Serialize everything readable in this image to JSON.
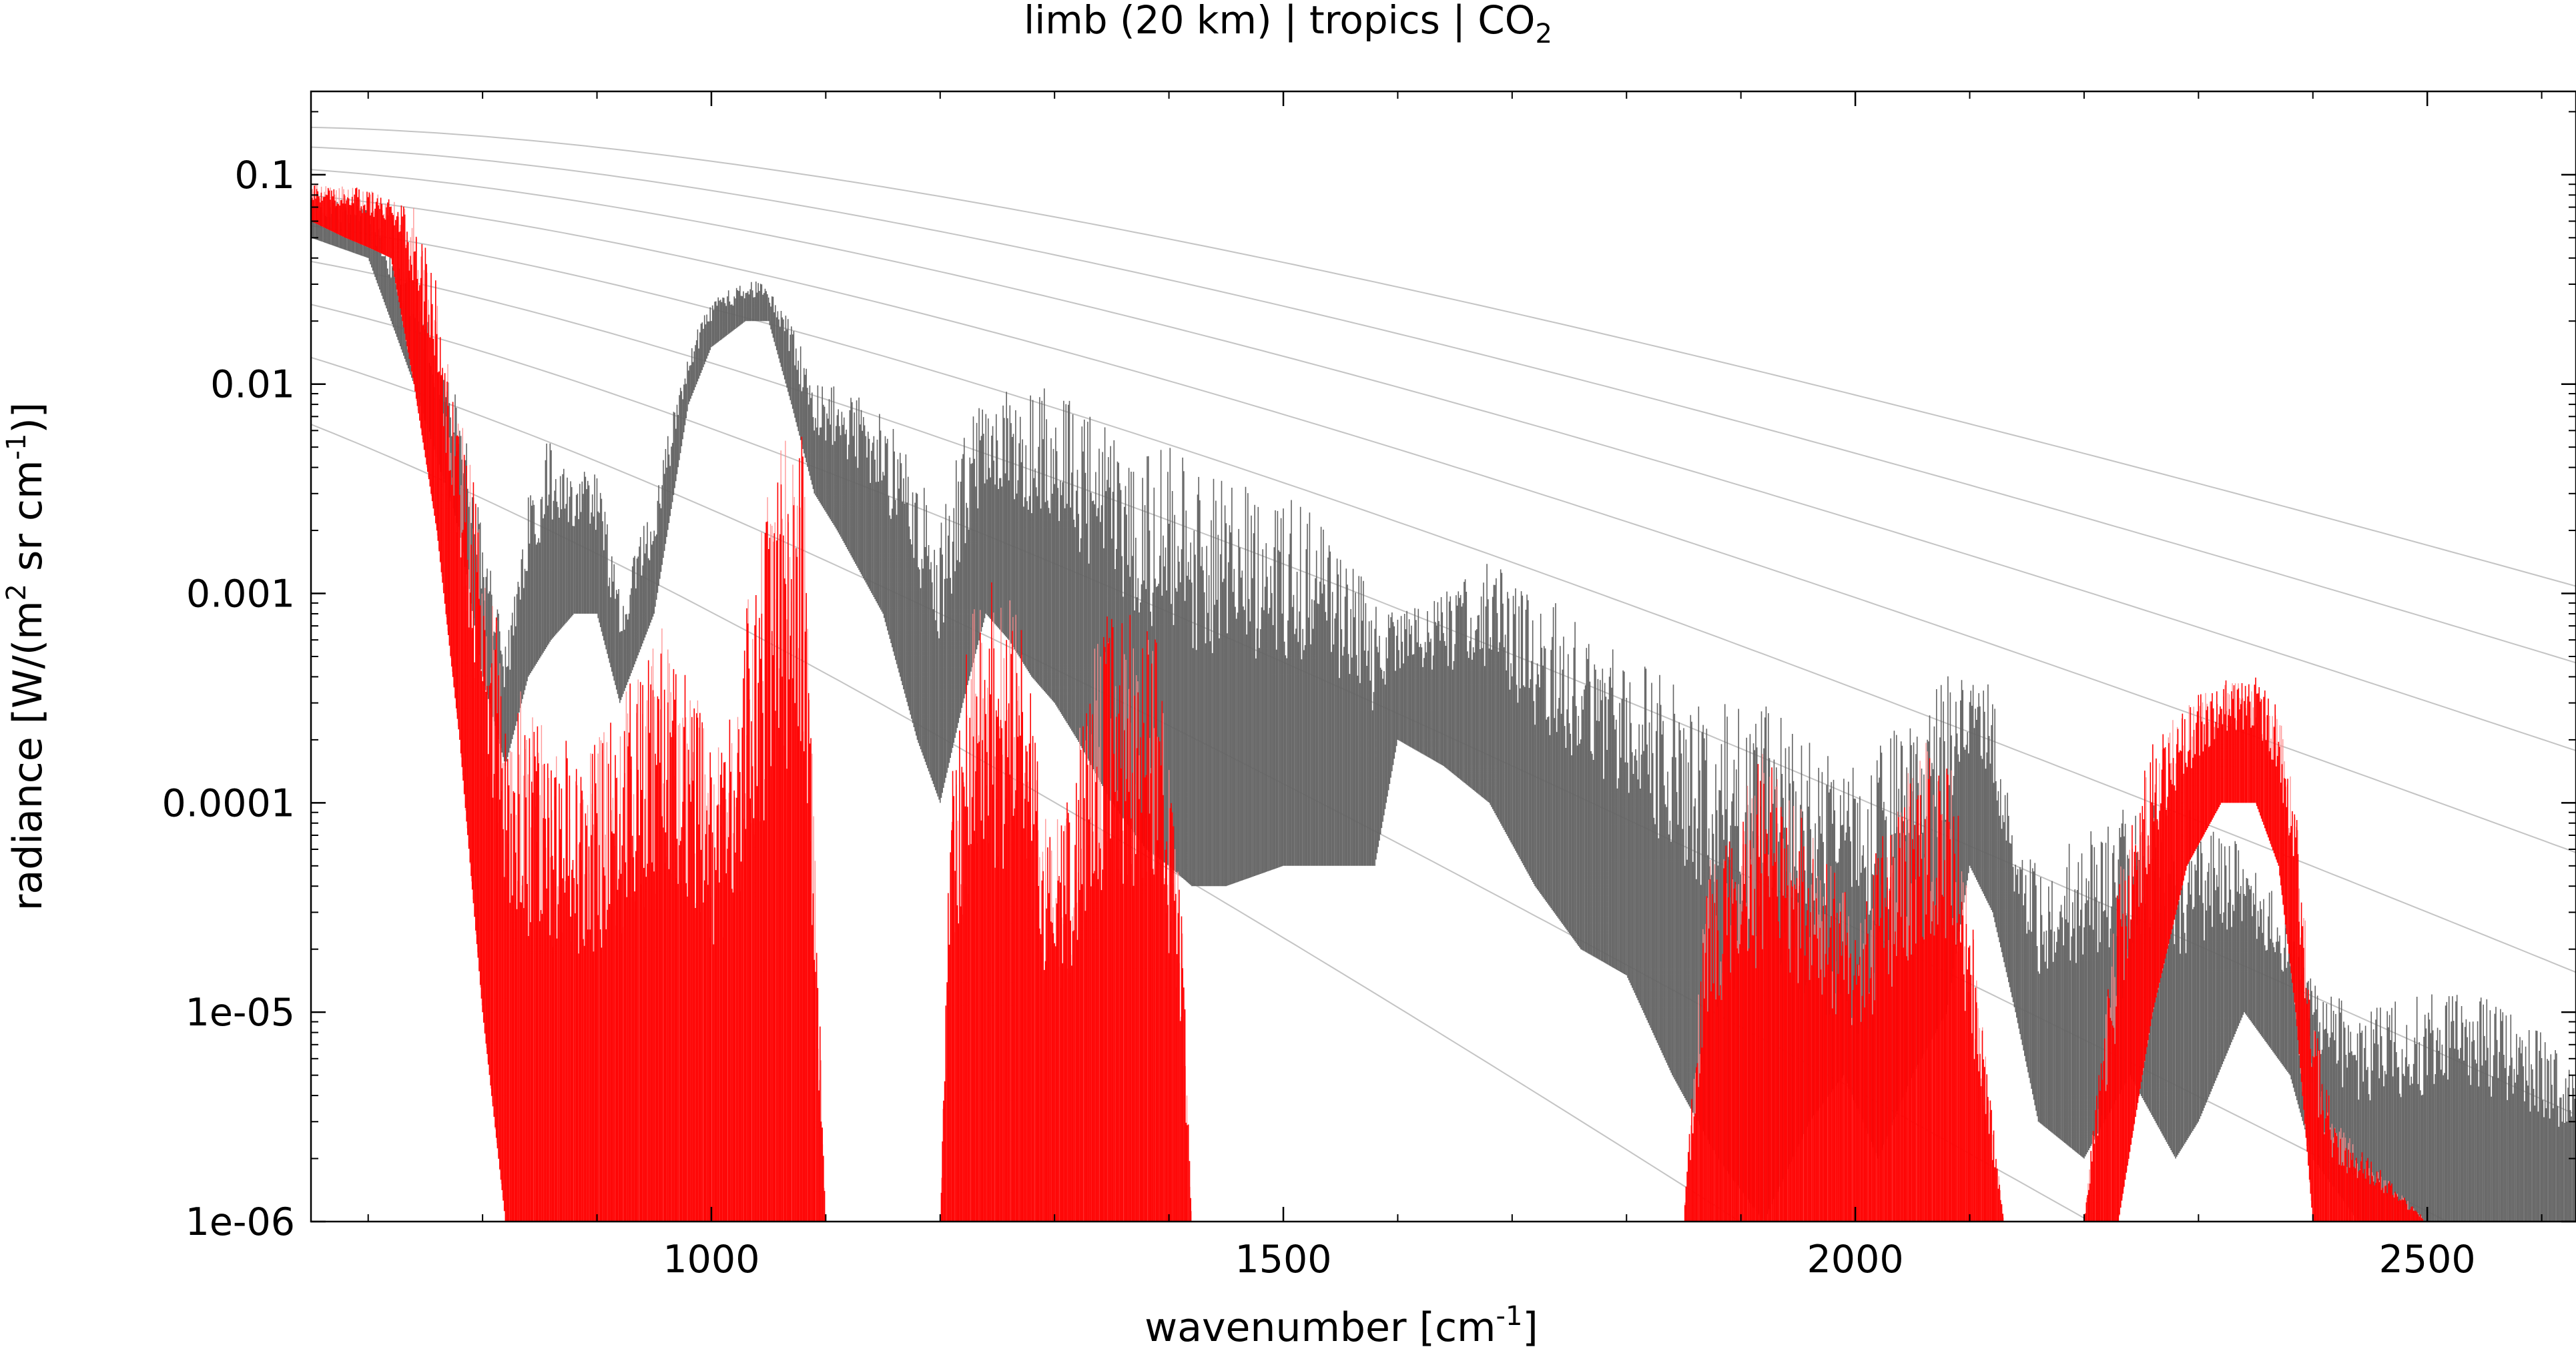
{
  "chart_data": {
    "type": "line",
    "title": {
      "prefix": "limb (20 km) | tropics | CO",
      "subscript": "2"
    },
    "xlabel": {
      "prefix": "wavenumber [cm",
      "superscript": "-1",
      "suffix": "]"
    },
    "ylabel": {
      "part1": "radiance [W/(m",
      "sup1": "2",
      "part2": " sr cm",
      "sup2": "-1",
      "part3": ")]"
    },
    "xlim": [
      650,
      2630
    ],
    "ylim": [
      1e-06,
      0.25
    ],
    "yscale": "log",
    "grid": false,
    "x_ticks": [
      1000,
      1500,
      2000,
      2500
    ],
    "x_tick_labels": [
      "1000",
      "1500",
      "2000",
      "2500"
    ],
    "y_ticks": [
      0.1,
      0.01,
      0.001,
      0.0001,
      1e-05,
      1e-06
    ],
    "y_tick_labels": [
      "0.1",
      "0.01",
      "0.001",
      "0.0001",
      "1e-05",
      "1e-06"
    ],
    "colors": {
      "total": "#636363",
      "co2": "#ff0000",
      "co2_light": "#ff8c8c",
      "reference": "#c4c4c4"
    },
    "reference_curves": {
      "note_units": "Planck radiance curves, temperature in K",
      "temperatures_K": [
        310,
        290,
        270,
        250,
        230,
        210,
        190,
        170,
        150
      ]
    },
    "series": [
      {
        "id": "total",
        "color_key": "total",
        "x": [
          650,
          700,
          740,
          780,
          800,
          820,
          840,
          860,
          880,
          900,
          920,
          950,
          980,
          1000,
          1030,
          1050,
          1070,
          1090,
          1110,
          1150,
          1180,
          1200,
          1220,
          1240,
          1260,
          1280,
          1300,
          1320,
          1350,
          1380,
          1400,
          1420,
          1450,
          1500,
          1550,
          1580,
          1600,
          1640,
          1680,
          1720,
          1760,
          1800,
          1840,
          1880,
          1920,
          1960,
          1990,
          2020,
          2050,
          2080,
          2100,
          2120,
          2140,
          2160,
          2200,
          2240,
          2280,
          2300,
          2340,
          2380,
          2400,
          2440,
          2480,
          2520,
          2560,
          2600,
          2630
        ],
        "y_upper": [
          0.08,
          0.07,
          0.03,
          0.008,
          0.002,
          0.0006,
          0.003,
          0.006,
          0.004,
          0.004,
          0.001,
          0.003,
          0.015,
          0.025,
          0.032,
          0.03,
          0.02,
          0.01,
          0.01,
          0.008,
          0.004,
          0.0025,
          0.006,
          0.009,
          0.01,
          0.009,
          0.01,
          0.008,
          0.006,
          0.005,
          0.005,
          0.0045,
          0.004,
          0.003,
          0.002,
          0.001,
          0.0008,
          0.001,
          0.0015,
          0.001,
          0.0008,
          0.0005,
          0.0004,
          0.0003,
          0.0003,
          0.0002,
          0.00015,
          0.0002,
          0.0003,
          0.0004,
          0.00045,
          0.0004,
          8e-05,
          5e-05,
          8e-05,
          0.0001,
          0.0001,
          0.0001,
          6e-05,
          3e-05,
          1.5e-05,
          1e-05,
          1.2e-05,
          1.3e-05,
          1.2e-05,
          8e-06,
          5e-06
        ],
        "y_lower": [
          0.05,
          0.04,
          0.01,
          0.002,
          0.0004,
          0.00015,
          0.0004,
          0.0006,
          0.0008,
          0.0008,
          0.0003,
          0.0008,
          0.008,
          0.015,
          0.02,
          0.02,
          0.008,
          0.003,
          0.002,
          0.0008,
          0.0002,
          0.0001,
          0.0003,
          0.0008,
          0.0006,
          0.0004,
          0.0003,
          0.0002,
          0.0001,
          6e-05,
          5e-05,
          4e-05,
          4e-05,
          5e-05,
          5e-05,
          5e-05,
          0.0002,
          0.00015,
          0.0001,
          4e-05,
          2e-05,
          1.5e-05,
          5e-06,
          2e-06,
          1e-06,
          3e-06,
          5e-06,
          2e-06,
          5e-06,
          1e-05,
          5e-05,
          3e-05,
          1e-05,
          3e-06,
          2e-06,
          5e-06,
          2e-06,
          3e-06,
          1e-05,
          5e-06,
          2e-06,
          1e-06,
          1e-06,
          1e-06,
          1e-06,
          1e-06,
          1e-06
        ]
      },
      {
        "id": "co2",
        "color_key": "co2",
        "x": [
          650,
          680,
          700,
          720,
          740,
          760,
          780,
          800,
          820,
          840,
          860,
          880,
          900,
          920,
          940,
          960,
          980,
          1000,
          1020,
          1040,
          1060,
          1080,
          1100,
          1200,
          1210,
          1230,
          1250,
          1270,
          1290,
          1310,
          1330,
          1350,
          1370,
          1390,
          1410,
          1420,
          1850,
          1870,
          1900,
          1920,
          1950,
          1980,
          2000,
          2030,
          2060,
          2090,
          2110,
          2130,
          2200,
          2230,
          2260,
          2290,
          2320,
          2350,
          2370,
          2385,
          2400,
          2420,
          2450,
          2500,
          2550,
          2630
        ],
        "y_upper": [
          0.09,
          0.09,
          0.085,
          0.08,
          0.07,
          0.03,
          0.008,
          0.002,
          0.0005,
          0.0003,
          0.0002,
          0.0002,
          0.0002,
          0.0003,
          0.0005,
          0.0008,
          0.0005,
          0.0002,
          0.0003,
          0.002,
          0.007,
          0.006,
          1e-06,
          1e-06,
          0.0002,
          0.001,
          0.0012,
          0.0009,
          0.0001,
          0.0001,
          0.0005,
          0.0009,
          0.0008,
          0.0006,
          5e-05,
          1e-06,
          1e-06,
          5e-05,
          0.0001,
          0.0002,
          0.0001,
          5e-05,
          3e-05,
          0.0001,
          0.0002,
          0.00015,
          1e-05,
          1e-06,
          1e-06,
          5e-05,
          0.0002,
          0.0003,
          0.0004,
          0.0004,
          0.0003,
          0.0001,
          1e-05,
          3e-06,
          2e-06,
          1e-06,
          1e-06,
          1e-06
        ],
        "y_lower": [
          0.06,
          0.05,
          0.045,
          0.04,
          0.01,
          0.002,
          0.0002,
          1e-05,
          1e-06,
          1e-06,
          1e-06,
          1e-06,
          1e-06,
          1e-06,
          1e-06,
          1e-06,
          1e-06,
          1e-06,
          1e-06,
          1e-06,
          1e-06,
          1e-06,
          1e-06,
          1e-06,
          1e-06,
          1e-06,
          1e-06,
          1e-06,
          1e-06,
          1e-06,
          1e-06,
          1e-06,
          1e-06,
          1e-06,
          1e-06,
          1e-06,
          1e-06,
          1e-06,
          1e-06,
          1e-06,
          1e-06,
          1e-06,
          1e-06,
          1e-06,
          1e-06,
          1e-06,
          1e-06,
          1e-06,
          1e-06,
          1e-06,
          1e-05,
          5e-05,
          0.0001,
          0.0001,
          5e-05,
          1e-05,
          1e-06,
          1e-06,
          1e-06,
          1e-06,
          1e-06,
          1e-06
        ]
      }
    ]
  }
}
